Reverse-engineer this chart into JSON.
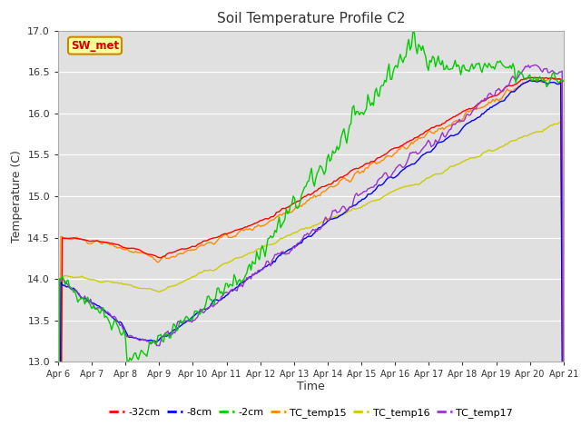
{
  "title": "Soil Temperature Profile C2",
  "xlabel": "Time",
  "ylabel": "Temperature (C)",
  "ylim": [
    13.0,
    17.0
  ],
  "yticks": [
    13.0,
    13.5,
    14.0,
    14.5,
    15.0,
    15.5,
    16.0,
    16.5,
    17.0
  ],
  "xlabels": [
    "Apr 6",
    "Apr 7",
    "Apr 8",
    "Apr 9",
    "Apr 10",
    "Apr 11",
    "Apr 12",
    "Apr 13",
    "Apr 14",
    "Apr 15",
    "Apr 16",
    "Apr 17",
    "Apr 18",
    "Apr 19",
    "Apr 20",
    "Apr 21"
  ],
  "bg_color": "#e0e0e0",
  "colors": {
    "-32cm": "#ff0000",
    "-8cm": "#0000ff",
    "-2cm": "#00cc00",
    "TC_temp15": "#ff8800",
    "TC_temp16": "#cccc00",
    "TC_temp17": "#9933cc"
  },
  "annotation_text": "SW_met",
  "annotation_color": "#cc0000",
  "annotation_bg": "#ffff99",
  "annotation_border": "#cc8800"
}
